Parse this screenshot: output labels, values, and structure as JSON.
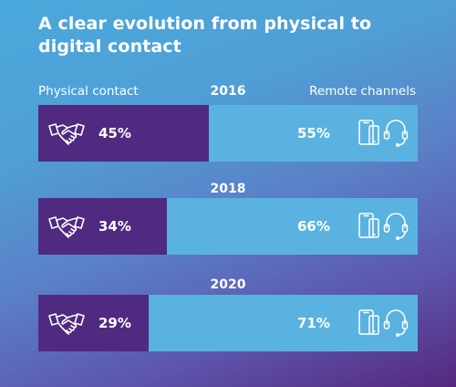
{
  "title": "A clear evolution from physical to digital contact",
  "headers": {
    "physical": "Physical contact",
    "remote": "Remote channels"
  },
  "colors": {
    "physical": "#4f2a80",
    "remote": "#5ab2e0"
  },
  "icons": {
    "physical": "handshake-icon",
    "remote": "devices-headset-icon"
  },
  "chart_data": {
    "type": "bar",
    "stacked": true,
    "orientation": "horizontal",
    "categories": [
      "2016",
      "2018",
      "2020"
    ],
    "series": [
      {
        "name": "Physical contact",
        "values": [
          45,
          34,
          29
        ]
      },
      {
        "name": "Remote channels",
        "values": [
          55,
          66,
          71
        ]
      }
    ],
    "value_labels": {
      "physical": [
        "45%",
        "34%",
        "29%"
      ],
      "remote": [
        "55%",
        "66%",
        "71%"
      ]
    },
    "xlim": [
      0,
      100
    ]
  }
}
